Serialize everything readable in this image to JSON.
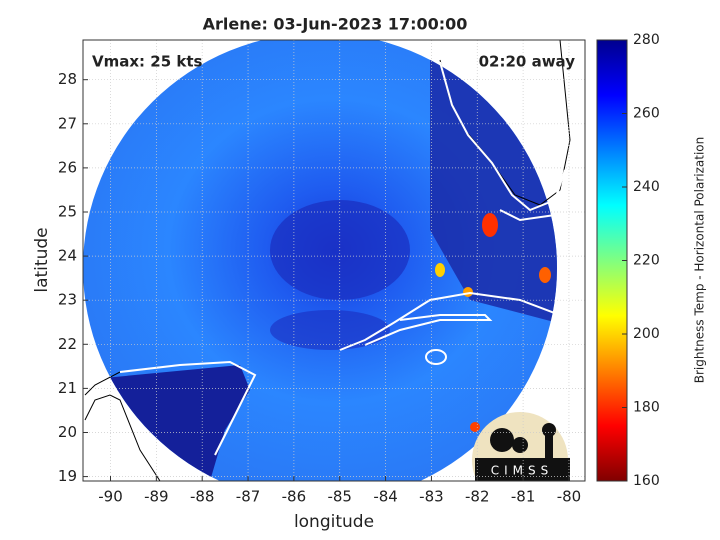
{
  "chart_data": {
    "type": "map",
    "title": "Arlene: 03-Jun-2023 17:00:00",
    "annotations": [
      "Vmax: 25 kts",
      "02:20 away"
    ],
    "x_label": "longitude",
    "y_label": "latitude",
    "xlim": [
      -90.6,
      -79.65
    ],
    "ylim": [
      18.9,
      28.9
    ],
    "xticks": [
      -90,
      -89,
      -88,
      -87,
      -86,
      -85,
      -84,
      -83,
      -82,
      -81,
      -80
    ],
    "yticks": [
      19,
      20,
      21,
      22,
      23,
      24,
      25,
      26,
      27,
      28
    ],
    "grid": true,
    "colorbar": {
      "label": "Brightness Temp - Horizontal Polarization",
      "lim": [
        160,
        280
      ],
      "ticks": [
        160,
        180,
        200,
        220,
        240,
        260,
        280
      ],
      "colors": [
        "#800000",
        "#ff0000",
        "#ff8000",
        "#ffff00",
        "#80ff80",
        "#00ffff",
        "#0080ff",
        "#0000ff",
        "#00008f"
      ]
    },
    "logo": "CIMSS"
  }
}
